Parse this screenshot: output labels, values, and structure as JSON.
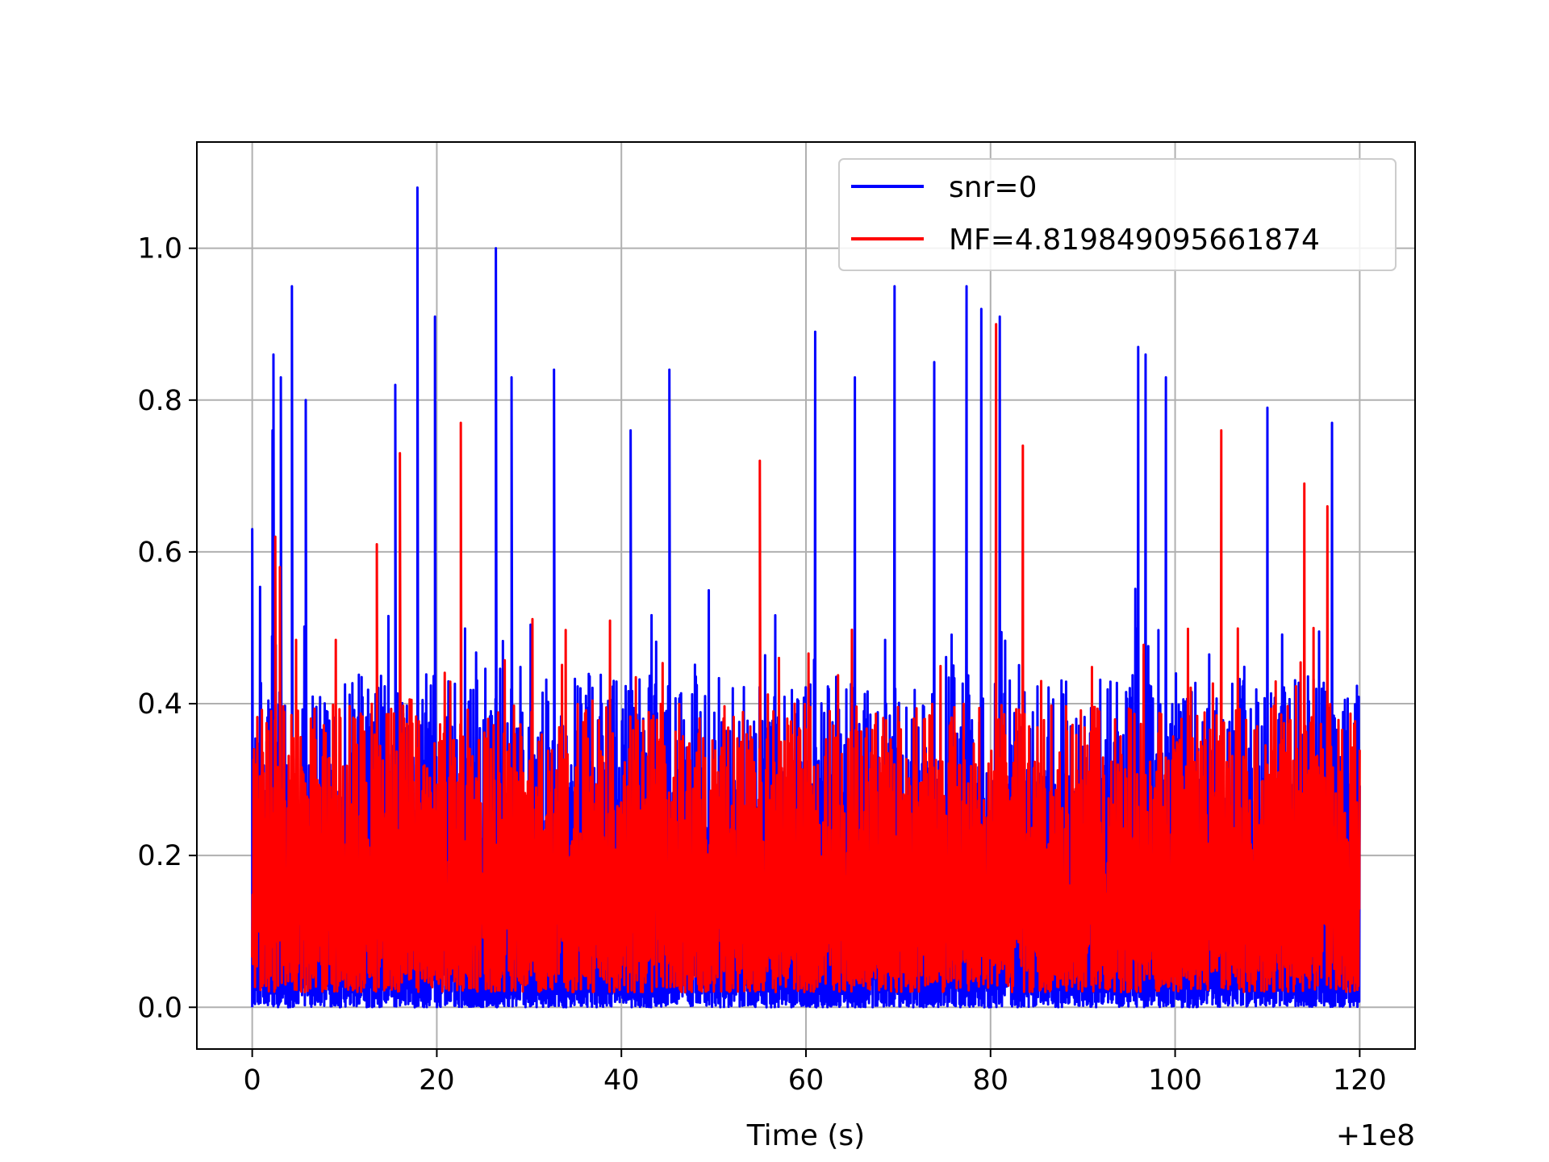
{
  "chart_data": {
    "type": "line",
    "title": "",
    "xlabel": "Time (s)",
    "ylabel": "",
    "x_offset_label": "+1e8",
    "xlim": [
      -6,
      126
    ],
    "ylim": [
      -0.055,
      1.14
    ],
    "xticks": [
      0,
      20,
      40,
      60,
      80,
      100,
      120
    ],
    "yticks": [
      0.0,
      0.2,
      0.4,
      0.6,
      0.8,
      1.0
    ],
    "xtick_labels": [
      "0",
      "20",
      "40",
      "60",
      "80",
      "100",
      "120"
    ],
    "ytick_labels": [
      "0.0",
      "0.2",
      "0.4",
      "0.6",
      "0.8",
      "1.0"
    ],
    "grid": true,
    "legend_position": "upper right",
    "series": [
      {
        "name": "snr=0",
        "color": "#0000ff",
        "typical_range": [
          0.0,
          0.55
        ],
        "peaks": [
          [
            0,
            0.63
          ],
          [
            2.2,
            0.76
          ],
          [
            2.3,
            0.86
          ],
          [
            3.1,
            0.83
          ],
          [
            4.3,
            0.95
          ],
          [
            5.8,
            0.8
          ],
          [
            15.5,
            0.82
          ],
          [
            17.9,
            1.08
          ],
          [
            19.8,
            0.91
          ],
          [
            26.4,
            1.0
          ],
          [
            28.1,
            0.83
          ],
          [
            32.7,
            0.84
          ],
          [
            41.0,
            0.76
          ],
          [
            45.2,
            0.84
          ],
          [
            61.0,
            0.89
          ],
          [
            65.3,
            0.83
          ],
          [
            69.6,
            0.95
          ],
          [
            73.9,
            0.85
          ],
          [
            77.4,
            0.95
          ],
          [
            79.0,
            0.92
          ],
          [
            81.0,
            0.91
          ],
          [
            96.0,
            0.87
          ],
          [
            96.8,
            0.86
          ],
          [
            99.0,
            0.83
          ],
          [
            110.0,
            0.79
          ],
          [
            117.0,
            0.77
          ]
        ]
      },
      {
        "name": "MF=4.819849095661874",
        "color": "#ff0000",
        "typical_range": [
          0.02,
          0.5
        ],
        "peaks": [
          [
            0.2,
            0.34
          ],
          [
            2.5,
            0.62
          ],
          [
            3.0,
            0.58
          ],
          [
            13.5,
            0.61
          ],
          [
            16.0,
            0.73
          ],
          [
            22.6,
            0.77
          ],
          [
            55.0,
            0.72
          ],
          [
            80.6,
            0.9
          ],
          [
            83.5,
            0.74
          ],
          [
            105.0,
            0.76
          ],
          [
            114.0,
            0.69
          ],
          [
            116.5,
            0.66
          ]
        ]
      }
    ]
  }
}
